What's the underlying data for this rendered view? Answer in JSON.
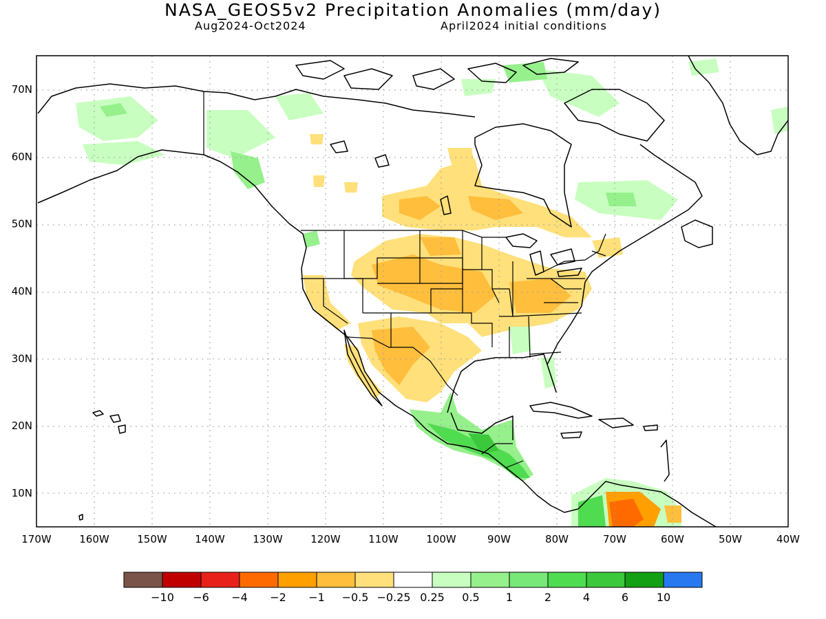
{
  "title": "NASA_GEOS5v2 Precipitation Anomalies (mm/day)",
  "period": "Aug2024-Oct2024",
  "init": "April2024 initial conditions",
  "map": {
    "lon_range": [
      -170,
      -40
    ],
    "lat_range": [
      5,
      75
    ],
    "lon_ticks": [
      "170W",
      "160W",
      "150W",
      "140W",
      "130W",
      "120W",
      "110W",
      "100W",
      "90W",
      "80W",
      "70W",
      "60W",
      "50W",
      "40W"
    ],
    "lat_ticks": [
      "10N",
      "20N",
      "30N",
      "40N",
      "50N",
      "60N",
      "70N"
    ]
  },
  "colorbar": {
    "colors": [
      "#7a5448",
      "#c00000",
      "#e8221a",
      "#ff6a00",
      "#ffa000",
      "#ffbe3c",
      "#ffe07a",
      "#ffffff",
      "#c8ffc0",
      "#96f08c",
      "#78e878",
      "#50dc50",
      "#3cc83c",
      "#14a014",
      "#2878f0"
    ],
    "labels": [
      "-10",
      "-6",
      "-4",
      "-2",
      "-1",
      "-0.5",
      "-0.25",
      "0.25",
      "0.5",
      "1",
      "2",
      "4",
      "6",
      "10"
    ]
  },
  "colors": {
    "frame": "#000000",
    "grid": "#a0a0a0",
    "land_outline": "#000000"
  }
}
